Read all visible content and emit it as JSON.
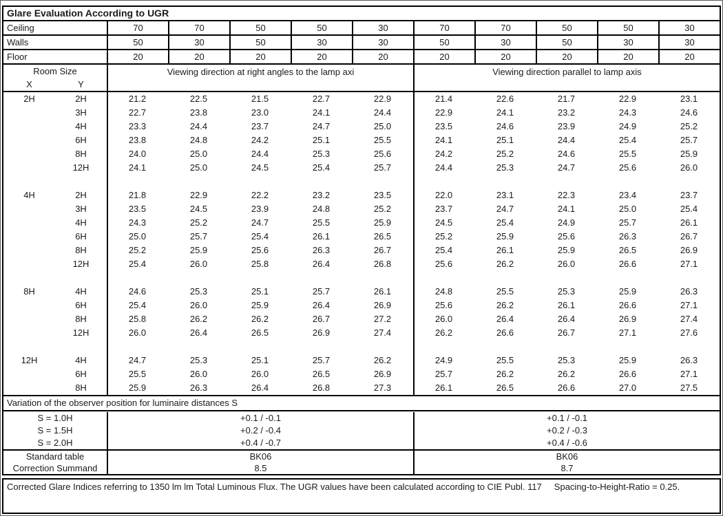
{
  "title": "Glare Evaluation According to UGR",
  "reflectance_rows": [
    {
      "label": "Ceiling",
      "values": [
        "70",
        "70",
        "50",
        "50",
        "30",
        "70",
        "70",
        "50",
        "50",
        "30"
      ]
    },
    {
      "label": "Walls",
      "values": [
        "50",
        "30",
        "50",
        "30",
        "30",
        "50",
        "30",
        "50",
        "30",
        "30"
      ]
    },
    {
      "label": "Floor",
      "values": [
        "20",
        "20",
        "20",
        "20",
        "20",
        "20",
        "20",
        "20",
        "20",
        "20"
      ]
    }
  ],
  "header": {
    "room_size": "Room Size",
    "x_label": "X",
    "y_label": "Y",
    "left_heading": "Viewing direction at right angles to the lamp axi",
    "right_heading": "Viewing direction parallel to lamp axis"
  },
  "ugr_blocks": [
    {
      "x": "2H",
      "rows": [
        {
          "y": "2H",
          "values": [
            "21.2",
            "22.5",
            "21.5",
            "22.7",
            "22.9",
            "21.4",
            "22.6",
            "21.7",
            "22.9",
            "23.1"
          ]
        },
        {
          "y": "3H",
          "values": [
            "22.7",
            "23.8",
            "23.0",
            "24.1",
            "24.4",
            "22.9",
            "24.1",
            "23.2",
            "24.3",
            "24.6"
          ]
        },
        {
          "y": "4H",
          "values": [
            "23.3",
            "24.4",
            "23.7",
            "24.7",
            "25.0",
            "23.5",
            "24.6",
            "23.9",
            "24.9",
            "25.2"
          ]
        },
        {
          "y": "6H",
          "values": [
            "23.8",
            "24.8",
            "24.2",
            "25.1",
            "25.5",
            "24.1",
            "25.1",
            "24.4",
            "25.4",
            "25.7"
          ]
        },
        {
          "y": "8H",
          "values": [
            "24.0",
            "25.0",
            "24.4",
            "25.3",
            "25.6",
            "24.2",
            "25.2",
            "24.6",
            "25.5",
            "25.9"
          ]
        },
        {
          "y": "12H",
          "values": [
            "24.1",
            "25.0",
            "24.5",
            "25.4",
            "25.7",
            "24.4",
            "25.3",
            "24.7",
            "25.6",
            "26.0"
          ]
        }
      ]
    },
    {
      "x": "4H",
      "rows": [
        {
          "y": "2H",
          "values": [
            "21.8",
            "22.9",
            "22.2",
            "23.2",
            "23.5",
            "22.0",
            "23.1",
            "22.3",
            "23.4",
            "23.7"
          ]
        },
        {
          "y": "3H",
          "values": [
            "23.5",
            "24.5",
            "23.9",
            "24.8",
            "25.2",
            "23.7",
            "24.7",
            "24.1",
            "25.0",
            "25.4"
          ]
        },
        {
          "y": "4H",
          "values": [
            "24.3",
            "25.2",
            "24.7",
            "25.5",
            "25.9",
            "24.5",
            "25.4",
            "24.9",
            "25.7",
            "26.1"
          ]
        },
        {
          "y": "6H",
          "values": [
            "25.0",
            "25.7",
            "25.4",
            "26.1",
            "26.5",
            "25.2",
            "25.9",
            "25.6",
            "26.3",
            "26.7"
          ]
        },
        {
          "y": "8H",
          "values": [
            "25.2",
            "25.9",
            "25.6",
            "26.3",
            "26.7",
            "25.4",
            "26.1",
            "25.9",
            "26.5",
            "26.9"
          ]
        },
        {
          "y": "12H",
          "values": [
            "25.4",
            "26.0",
            "25.8",
            "26.4",
            "26.8",
            "25.6",
            "26.2",
            "26.0",
            "26.6",
            "27.1"
          ]
        }
      ]
    },
    {
      "x": "8H",
      "rows": [
        {
          "y": "4H",
          "values": [
            "24.6",
            "25.3",
            "25.1",
            "25.7",
            "26.1",
            "24.8",
            "25.5",
            "25.3",
            "25.9",
            "26.3"
          ]
        },
        {
          "y": "6H",
          "values": [
            "25.4",
            "26.0",
            "25.9",
            "26.4",
            "26.9",
            "25.6",
            "26.2",
            "26.1",
            "26.6",
            "27.1"
          ]
        },
        {
          "y": "8H",
          "values": [
            "25.8",
            "26.2",
            "26.2",
            "26.7",
            "27.2",
            "26.0",
            "26.4",
            "26.4",
            "26.9",
            "27.4"
          ]
        },
        {
          "y": "12H",
          "values": [
            "26.0",
            "26.4",
            "26.5",
            "26.9",
            "27.4",
            "26.2",
            "26.6",
            "26.7",
            "27.1",
            "27.6"
          ]
        }
      ]
    },
    {
      "x": "12H",
      "rows": [
        {
          "y": "4H",
          "values": [
            "24.7",
            "25.3",
            "25.1",
            "25.7",
            "26.2",
            "24.9",
            "25.5",
            "25.3",
            "25.9",
            "26.3"
          ]
        },
        {
          "y": "6H",
          "values": [
            "25.5",
            "26.0",
            "26.0",
            "26.5",
            "26.9",
            "25.7",
            "26.2",
            "26.2",
            "26.6",
            "27.1"
          ]
        },
        {
          "y": "8H",
          "values": [
            "25.9",
            "26.3",
            "26.4",
            "26.8",
            "27.3",
            "26.1",
            "26.5",
            "26.6",
            "27.0",
            "27.5"
          ]
        }
      ]
    }
  ],
  "variation": {
    "heading": "Variation of the observer position for luminaire distances S",
    "rows": [
      {
        "label": "S = 1.0H",
        "left": "+0.1 / -0.1",
        "right": "+0.1 / -0.1"
      },
      {
        "label": "S = 1.5H",
        "left": "+0.2 / -0.4",
        "right": "+0.2 / -0.3"
      },
      {
        "label": "S = 2.0H",
        "left": "+0.4 / -0.7",
        "right": "+0.4 / -0.6"
      }
    ]
  },
  "summary_rows": [
    {
      "label": "Standard table",
      "left": "BK06",
      "right": "BK06"
    },
    {
      "label": "Correction Summand",
      "left": "8.5",
      "right": "8.7"
    }
  ],
  "footer": {
    "text_main": "Corrected Glare Indices referring to 1350 lm lm Total Luminous Flux. The UGR values have been calculated according to CIE Publ. 117",
    "text_ratio": "Spacing-to-Height-Ratio = 0.25."
  }
}
